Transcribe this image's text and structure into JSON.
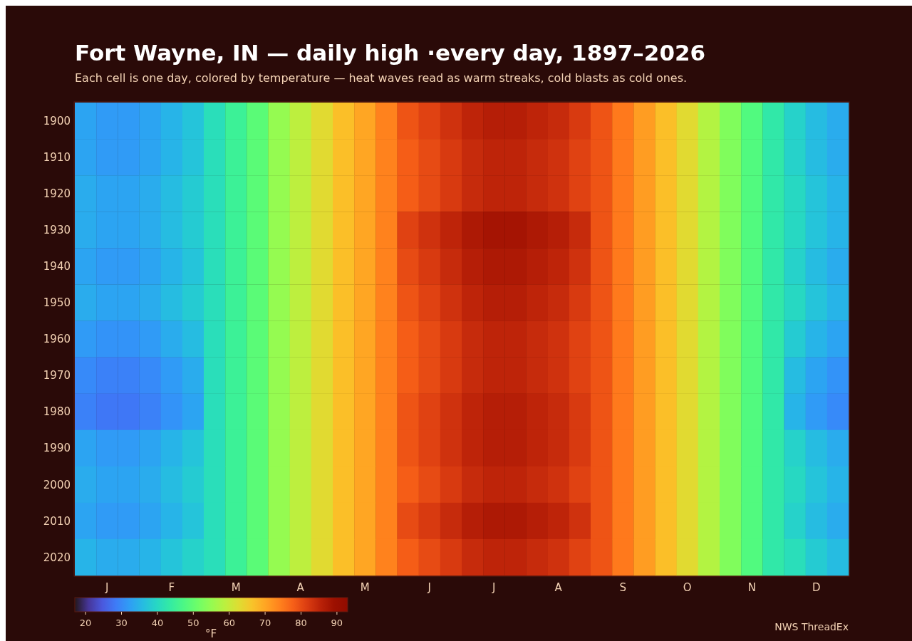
{
  "chart_data": {
    "type": "heatmap",
    "title": "Fort Wayne, IN — daily high ·every day, 1897–2026",
    "subtitle": "Each cell is one day, colored by temperature — heat waves read as warm streaks, cold blasts as cold ones.",
    "categories": [
      null,
      "J",
      null,
      null,
      "F",
      null,
      null,
      "M",
      null,
      null,
      "A",
      null,
      null,
      "M",
      null,
      null,
      "J",
      null,
      null,
      "J",
      null,
      null,
      "A",
      null,
      null,
      "S",
      null,
      null,
      "O",
      null,
      null,
      "N",
      null,
      null,
      "D",
      null
    ],
    "y_categories": [
      "1900",
      "1910",
      "1920",
      "1930",
      "1940",
      "1950",
      "1960",
      "1970",
      "1980",
      "1990",
      "2000",
      "2010",
      "2020"
    ],
    "cells": [
      [
        33,
        32,
        32,
        33,
        35,
        37,
        41,
        45,
        49,
        55,
        59,
        63,
        67,
        70,
        74,
        79,
        81,
        83,
        85,
        86,
        86,
        85,
        84,
        82,
        79,
        75,
        71,
        67,
        63,
        58,
        53,
        48,
        43,
        39,
        36,
        34
      ],
      [
        33,
        32,
        32,
        33,
        35,
        37,
        41,
        45,
        49,
        55,
        59,
        63,
        67,
        70,
        74,
        78,
        80,
        82,
        84,
        85,
        85,
        84,
        83,
        81,
        79,
        75,
        71,
        67,
        63,
        58,
        53,
        48,
        43,
        39,
        36,
        34
      ],
      [
        34,
        33,
        33,
        34,
        36,
        38,
        41,
        45,
        49,
        55,
        59,
        63,
        67,
        70,
        74,
        78,
        80,
        82,
        84,
        85,
        85,
        84,
        83,
        81,
        79,
        75,
        71,
        67,
        63,
        58,
        53,
        48,
        43,
        40,
        37,
        35
      ],
      [
        34,
        33,
        33,
        34,
        36,
        38,
        41,
        45,
        49,
        55,
        59,
        63,
        67,
        70,
        74,
        81,
        83,
        85,
        87,
        88,
        88,
        87,
        86,
        84,
        79,
        75,
        71,
        67,
        63,
        58,
        53,
        48,
        43,
        40,
        37,
        35
      ],
      [
        33,
        32,
        32,
        33,
        35,
        37,
        41,
        45,
        49,
        55,
        59,
        63,
        67,
        70,
        74,
        80,
        82,
        84,
        86,
        87,
        87,
        86,
        85,
        83,
        79,
        75,
        71,
        67,
        63,
        58,
        53,
        48,
        43,
        39,
        36,
        34
      ],
      [
        34,
        33,
        33,
        34,
        36,
        38,
        41,
        45,
        49,
        55,
        59,
        63,
        67,
        70,
        74,
        79,
        81,
        83,
        85,
        86,
        86,
        85,
        84,
        82,
        79,
        75,
        71,
        67,
        63,
        58,
        53,
        48,
        43,
        40,
        37,
        35
      ],
      [
        32,
        31,
        31,
        32,
        34,
        36,
        41,
        45,
        49,
        55,
        59,
        63,
        67,
        70,
        74,
        78,
        80,
        82,
        84,
        85,
        85,
        84,
        83,
        81,
        79,
        75,
        71,
        67,
        63,
        58,
        53,
        48,
        43,
        38,
        35,
        33
      ],
      [
        30,
        29,
        29,
        30,
        32,
        34,
        41,
        45,
        49,
        55,
        59,
        63,
        67,
        70,
        74,
        78,
        80,
        82,
        84,
        85,
        85,
        84,
        83,
        81,
        79,
        75,
        71,
        67,
        63,
        58,
        53,
        48,
        43,
        36,
        33,
        31
      ],
      [
        29,
        28,
        28,
        29,
        31,
        33,
        41,
        45,
        49,
        55,
        59,
        63,
        67,
        70,
        74,
        79,
        81,
        83,
        85,
        86,
        86,
        85,
        84,
        82,
        79,
        75,
        71,
        67,
        63,
        58,
        53,
        48,
        43,
        35,
        32,
        30
      ],
      [
        33,
        32,
        32,
        33,
        35,
        37,
        41,
        45,
        49,
        55,
        59,
        63,
        67,
        70,
        74,
        79,
        81,
        83,
        85,
        86,
        86,
        85,
        84,
        82,
        79,
        75,
        71,
        67,
        63,
        58,
        53,
        48,
        43,
        39,
        36,
        34
      ],
      [
        34,
        33,
        33,
        34,
        36,
        38,
        41,
        45,
        49,
        55,
        59,
        63,
        67,
        70,
        74,
        78,
        80,
        82,
        84,
        85,
        85,
        84,
        83,
        81,
        79,
        75,
        71,
        67,
        63,
        58,
        53,
        48,
        43,
        40,
        37,
        35
      ],
      [
        33,
        32,
        32,
        33,
        35,
        37,
        41,
        45,
        49,
        55,
        59,
        63,
        67,
        70,
        74,
        80,
        82,
        84,
        86,
        87,
        87,
        86,
        85,
        83,
        79,
        75,
        71,
        67,
        63,
        58,
        53,
        48,
        43,
        39,
        36,
        34
      ],
      [
        35,
        34,
        34,
        35,
        37,
        39,
        41,
        45,
        49,
        55,
        59,
        63,
        67,
        70,
        74,
        78,
        80,
        82,
        84,
        85,
        85,
        84,
        83,
        81,
        79,
        75,
        71,
        67,
        63,
        58,
        53,
        48,
        43,
        41,
        38,
        36
      ]
    ],
    "clim": [
      17,
      93
    ],
    "cticks": [
      20,
      30,
      40,
      50,
      60,
      70,
      80,
      90
    ],
    "clabel": "°F",
    "annotations": [
      "NWS ThreadEx"
    ]
  }
}
